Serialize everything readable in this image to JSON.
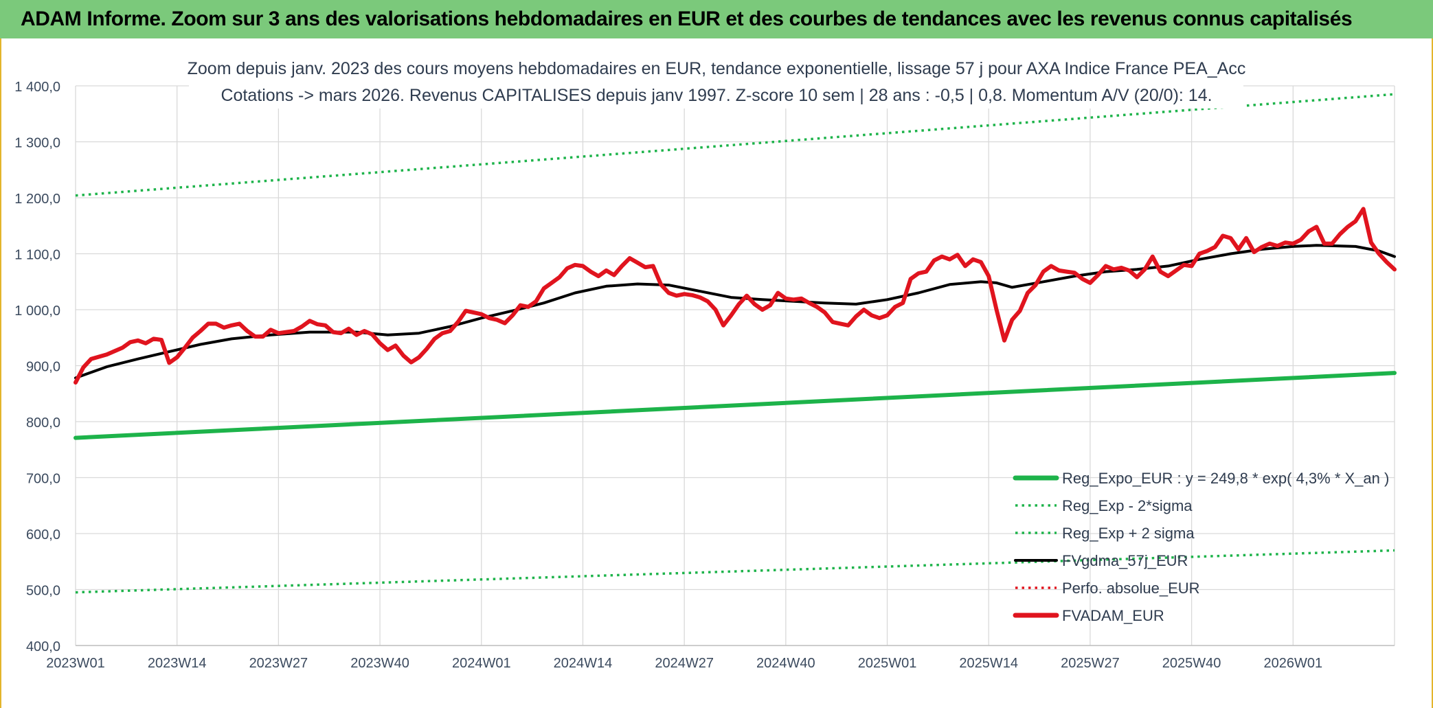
{
  "banner": {
    "title": "ADAM Informe. Zoom sur 3 ans des valorisations hebdomadaires en EUR et des courbes de tendances avec les revenus connus capitalisés"
  },
  "chart_data": {
    "type": "line",
    "title_line1": "Zoom depuis janv. 2023 des cours moyens hebdomadaires en EUR, tendance exponentielle, lissage 57 j pour AXA Indice France PEA_Acc",
    "title_line2": "Cotations -> mars 2026. Revenus CAPITALISES depuis janv 1997. Z-score 10 sem | 28 ans : -0,5 | 0,8. Momentum A/V (20/0): 14.",
    "ylim": [
      400,
      1400
    ],
    "y_ticks": [
      {
        "v": 400,
        "label": "400,0"
      },
      {
        "v": 500,
        "label": "500,0"
      },
      {
        "v": 600,
        "label": "600,0"
      },
      {
        "v": 700,
        "label": "700,0"
      },
      {
        "v": 800,
        "label": "800,0"
      },
      {
        "v": 900,
        "label": "900,0"
      },
      {
        "v": 1000,
        "label": "1 000,0"
      },
      {
        "v": 1100,
        "label": "1 100,0"
      },
      {
        "v": 1200,
        "label": "1 200,0"
      },
      {
        "v": 1300,
        "label": "1 300,0"
      },
      {
        "v": 1400,
        "label": "1 400,0"
      }
    ],
    "x_ticks": [
      {
        "i": 0,
        "label": "2023W01"
      },
      {
        "i": 13,
        "label": "2023W14"
      },
      {
        "i": 26,
        "label": "2023W27"
      },
      {
        "i": 39,
        "label": "2023W40"
      },
      {
        "i": 52,
        "label": "2024W01"
      },
      {
        "i": 65,
        "label": "2024W14"
      },
      {
        "i": 78,
        "label": "2024W27"
      },
      {
        "i": 91,
        "label": "2024W40"
      },
      {
        "i": 104,
        "label": "2025W01"
      },
      {
        "i": 117,
        "label": "2025W14"
      },
      {
        "i": 130,
        "label": "2025W27"
      },
      {
        "i": 143,
        "label": "2025W40"
      },
      {
        "i": 156,
        "label": "2026W01"
      }
    ],
    "x_count": 170,
    "grid": true,
    "legend_position": "bottom-right",
    "series": [
      {
        "name": "Reg_Expo_EUR : y = 249,8 * exp( 4,3% *  X_an )",
        "style": "solid-thick",
        "color": "#1db34a",
        "points": [
          [
            0,
            771
          ],
          [
            169,
            887
          ]
        ]
      },
      {
        "name": "Reg_Exp - 2*sigma",
        "style": "dotted",
        "color": "#1db34a",
        "points": [
          [
            0,
            495
          ],
          [
            169,
            570
          ]
        ]
      },
      {
        "name": "Reg_Exp + 2 sigma",
        "style": "dotted",
        "color": "#1db34a",
        "points": [
          [
            0,
            1204
          ],
          [
            169,
            1385
          ]
        ]
      },
      {
        "name": "FVgdma_57j_EUR",
        "style": "solid",
        "color": "#000000",
        "points": [
          [
            0,
            878
          ],
          [
            4,
            898
          ],
          [
            8,
            912
          ],
          [
            12,
            925
          ],
          [
            16,
            938
          ],
          [
            20,
            948
          ],
          [
            25,
            955
          ],
          [
            30,
            960
          ],
          [
            36,
            960
          ],
          [
            40,
            955
          ],
          [
            44,
            958
          ],
          [
            48,
            970
          ],
          [
            52,
            985
          ],
          [
            56,
            998
          ],
          [
            60,
            1012
          ],
          [
            64,
            1030
          ],
          [
            68,
            1042
          ],
          [
            72,
            1046
          ],
          [
            76,
            1044
          ],
          [
            80,
            1033
          ],
          [
            84,
            1022
          ],
          [
            88,
            1018
          ],
          [
            92,
            1015
          ],
          [
            96,
            1012
          ],
          [
            100,
            1010
          ],
          [
            104,
            1018
          ],
          [
            108,
            1030
          ],
          [
            112,
            1045
          ],
          [
            116,
            1050
          ],
          [
            118,
            1048
          ],
          [
            120,
            1040
          ],
          [
            124,
            1050
          ],
          [
            128,
            1060
          ],
          [
            132,
            1068
          ],
          [
            136,
            1072
          ],
          [
            140,
            1078
          ],
          [
            144,
            1090
          ],
          [
            148,
            1100
          ],
          [
            152,
            1108
          ],
          [
            156,
            1113
          ],
          [
            159,
            1115
          ],
          [
            164,
            1113
          ],
          [
            167,
            1105
          ],
          [
            169,
            1095
          ]
        ]
      },
      {
        "name": "Perfo. absolue_EUR",
        "style": "dotted",
        "color": "#e0141e",
        "points": []
      },
      {
        "name": "FVADAM_EUR",
        "style": "solid-thick",
        "color": "#e0141e",
        "points": [
          [
            0,
            870
          ],
          [
            1,
            897
          ],
          [
            2,
            912
          ],
          [
            4,
            920
          ],
          [
            6,
            932
          ],
          [
            7,
            942
          ],
          [
            8,
            945
          ],
          [
            9,
            940
          ],
          [
            10,
            948
          ],
          [
            11,
            946
          ],
          [
            12,
            905
          ],
          [
            13,
            915
          ],
          [
            14,
            932
          ],
          [
            15,
            950
          ],
          [
            16,
            962
          ],
          [
            17,
            975
          ],
          [
            18,
            975
          ],
          [
            19,
            968
          ],
          [
            20,
            972
          ],
          [
            21,
            975
          ],
          [
            22,
            962
          ],
          [
            23,
            952
          ],
          [
            24,
            952
          ],
          [
            25,
            964
          ],
          [
            26,
            958
          ],
          [
            27,
            960
          ],
          [
            28,
            962
          ],
          [
            29,
            970
          ],
          [
            30,
            980
          ],
          [
            31,
            974
          ],
          [
            32,
            972
          ],
          [
            33,
            960
          ],
          [
            34,
            958
          ],
          [
            35,
            966
          ],
          [
            36,
            955
          ],
          [
            37,
            962
          ],
          [
            38,
            956
          ],
          [
            39,
            940
          ],
          [
            40,
            928
          ],
          [
            41,
            936
          ],
          [
            42,
            918
          ],
          [
            43,
            906
          ],
          [
            44,
            915
          ],
          [
            45,
            930
          ],
          [
            46,
            948
          ],
          [
            47,
            958
          ],
          [
            48,
            962
          ],
          [
            49,
            978
          ],
          [
            50,
            998
          ],
          [
            51,
            995
          ],
          [
            52,
            992
          ],
          [
            53,
            985
          ],
          [
            54,
            982
          ],
          [
            55,
            976
          ],
          [
            56,
            990
          ],
          [
            57,
            1008
          ],
          [
            58,
            1005
          ],
          [
            59,
            1015
          ],
          [
            60,
            1038
          ],
          [
            61,
            1048
          ],
          [
            62,
            1058
          ],
          [
            63,
            1074
          ],
          [
            64,
            1080
          ],
          [
            65,
            1078
          ],
          [
            66,
            1068
          ],
          [
            67,
            1060
          ],
          [
            68,
            1070
          ],
          [
            69,
            1062
          ],
          [
            70,
            1078
          ],
          [
            71,
            1092
          ],
          [
            72,
            1084
          ],
          [
            73,
            1076
          ],
          [
            74,
            1078
          ],
          [
            75,
            1045
          ],
          [
            76,
            1030
          ],
          [
            77,
            1025
          ],
          [
            78,
            1028
          ],
          [
            79,
            1026
          ],
          [
            80,
            1022
          ],
          [
            81,
            1015
          ],
          [
            82,
            1000
          ],
          [
            83,
            972
          ],
          [
            84,
            990
          ],
          [
            85,
            1010
          ],
          [
            86,
            1025
          ],
          [
            87,
            1010
          ],
          [
            88,
            1000
          ],
          [
            89,
            1008
          ],
          [
            90,
            1030
          ],
          [
            91,
            1020
          ],
          [
            92,
            1018
          ],
          [
            93,
            1020
          ],
          [
            94,
            1012
          ],
          [
            95,
            1005
          ],
          [
            96,
            995
          ],
          [
            97,
            978
          ],
          [
            98,
            975
          ],
          [
            99,
            972
          ],
          [
            100,
            988
          ],
          [
            101,
            1000
          ],
          [
            102,
            990
          ],
          [
            103,
            985
          ],
          [
            104,
            990
          ],
          [
            105,
            1005
          ],
          [
            106,
            1012
          ],
          [
            107,
            1055
          ],
          [
            108,
            1065
          ],
          [
            109,
            1068
          ],
          [
            110,
            1088
          ],
          [
            111,
            1095
          ],
          [
            112,
            1090
          ],
          [
            113,
            1098
          ],
          [
            114,
            1078
          ],
          [
            115,
            1090
          ],
          [
            116,
            1085
          ],
          [
            117,
            1060
          ],
          [
            118,
            1000
          ],
          [
            119,
            945
          ],
          [
            120,
            982
          ],
          [
            121,
            998
          ],
          [
            122,
            1030
          ],
          [
            123,
            1044
          ],
          [
            124,
            1068
          ],
          [
            125,
            1078
          ],
          [
            126,
            1070
          ],
          [
            127,
            1068
          ],
          [
            128,
            1066
          ],
          [
            129,
            1055
          ],
          [
            130,
            1048
          ],
          [
            131,
            1062
          ],
          [
            132,
            1078
          ],
          [
            133,
            1072
          ],
          [
            134,
            1075
          ],
          [
            135,
            1070
          ],
          [
            136,
            1058
          ],
          [
            137,
            1072
          ],
          [
            138,
            1095
          ],
          [
            139,
            1068
          ],
          [
            140,
            1060
          ],
          [
            141,
            1070
          ],
          [
            142,
            1080
          ],
          [
            143,
            1078
          ],
          [
            144,
            1100
          ],
          [
            145,
            1105
          ],
          [
            146,
            1112
          ],
          [
            147,
            1132
          ],
          [
            148,
            1128
          ],
          [
            149,
            1108
          ],
          [
            150,
            1128
          ],
          [
            151,
            1103
          ],
          [
            152,
            1112
          ],
          [
            153,
            1118
          ],
          [
            154,
            1114
          ],
          [
            155,
            1120
          ],
          [
            156,
            1118
          ],
          [
            157,
            1125
          ],
          [
            158,
            1140
          ],
          [
            159,
            1148
          ],
          [
            160,
            1118
          ],
          [
            161,
            1118
          ],
          [
            162,
            1135
          ],
          [
            163,
            1148
          ],
          [
            164,
            1158
          ],
          [
            165,
            1180
          ],
          [
            166,
            1120
          ],
          [
            167,
            1100
          ],
          [
            168,
            1085
          ],
          [
            169,
            1072
          ]
        ]
      }
    ]
  }
}
